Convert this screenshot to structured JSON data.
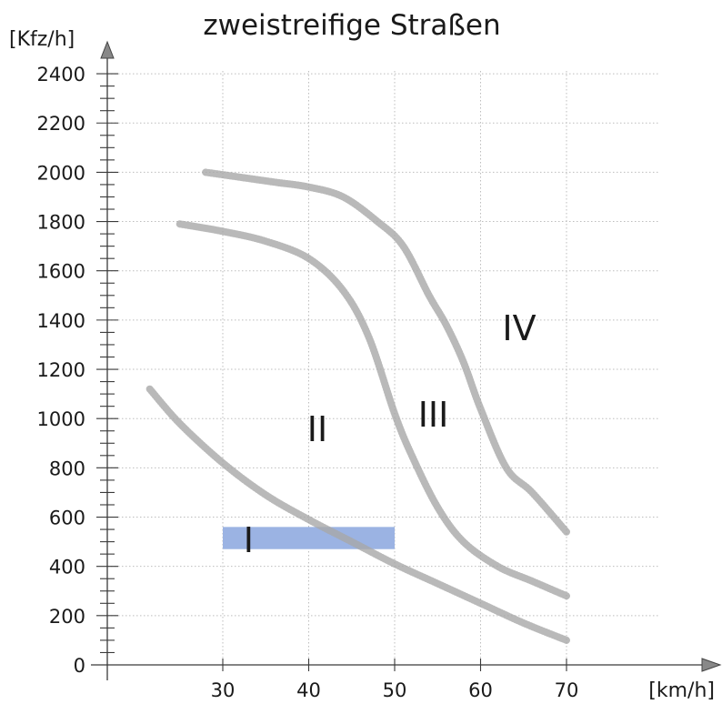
{
  "chart_data": {
    "type": "line",
    "title": "zweistreifige Straßen",
    "ylabel": "[Kfz/h]",
    "xlabel": "[km/h]",
    "xlim": [
      17,
      78
    ],
    "ylim": [
      0,
      2400
    ],
    "x_ticks": [
      30,
      40,
      50,
      60,
      70
    ],
    "y_ticks": [
      0,
      200,
      400,
      600,
      800,
      1000,
      1200,
      1400,
      1600,
      1800,
      2000,
      2200,
      2400
    ],
    "grid": true,
    "series": [
      {
        "x": [
          21.5,
          25,
          30,
          35,
          40,
          45,
          50,
          55,
          60,
          65,
          70
        ],
        "y": [
          1120,
          980,
          820,
          690,
          590,
          500,
          410,
          330,
          250,
          170,
          100
        ]
      },
      {
        "x": [
          25,
          30,
          35,
          40,
          44,
          47,
          50,
          52,
          55,
          58,
          62,
          66,
          70
        ],
        "y": [
          1790,
          1760,
          1720,
          1650,
          1520,
          1330,
          1020,
          850,
          640,
          500,
          400,
          340,
          280
        ]
      },
      {
        "x": [
          28,
          32,
          36,
          40,
          44,
          48,
          51,
          54,
          56,
          58,
          60,
          63,
          66,
          70
        ],
        "y": [
          2000,
          1980,
          1960,
          1940,
          1900,
          1800,
          1700,
          1500,
          1380,
          1230,
          1040,
          800,
          700,
          540
        ]
      }
    ],
    "zones": [
      {
        "label": "I",
        "x": 33,
        "y": 510
      },
      {
        "label": "II",
        "x": 41,
        "y": 960
      },
      {
        "label": "III",
        "x": 54.5,
        "y": 1020
      },
      {
        "label": "IV",
        "x": 64.5,
        "y": 1370
      }
    ],
    "highlight": {
      "x_range": [
        30,
        50
      ],
      "y_range": [
        470,
        560
      ],
      "color": "#9bb3e3"
    }
  }
}
